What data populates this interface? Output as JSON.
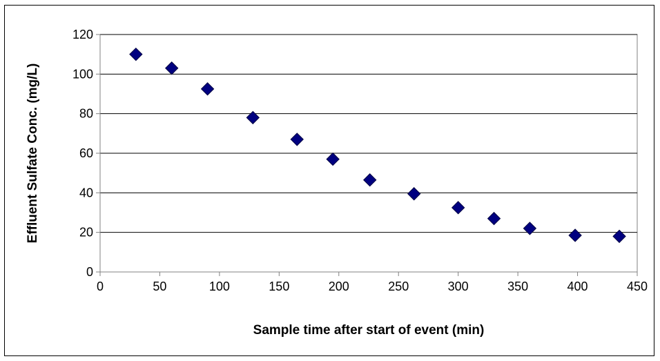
{
  "chart_data": {
    "type": "scatter",
    "title": "",
    "xlabel": "Sample time after start of event (min)",
    "ylabel": "Effluent Sulfate Conc. (mg/L)",
    "xlim": [
      0,
      450
    ],
    "ylim": [
      0,
      120
    ],
    "x_ticks": [
      0,
      50,
      100,
      150,
      200,
      250,
      300,
      350,
      400,
      450
    ],
    "y_ticks": [
      0,
      20,
      40,
      60,
      80,
      100,
      120
    ],
    "grid": "horizontal",
    "legend": "none",
    "marker": "diamond",
    "marker_color": "#000080",
    "series": [
      {
        "x": [
          30,
          60,
          90,
          128,
          165,
          195,
          226,
          263,
          300,
          330,
          360,
          398,
          435
        ],
        "y": [
          110,
          103,
          92.5,
          78,
          67,
          57,
          46.5,
          39.5,
          32.5,
          27,
          22,
          18.5,
          18
        ]
      }
    ]
  }
}
